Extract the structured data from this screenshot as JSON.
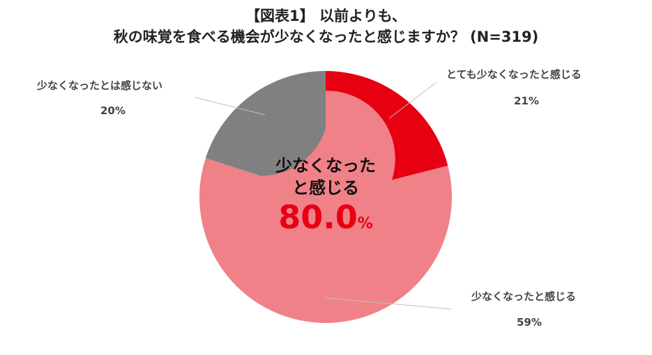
{
  "chart_data": {
    "type": "pie",
    "title_line1": "【図表1】 以前よりも、",
    "title_line2": "秋の味覚を食べる機会が少なくなったと感じますか？ (N=319)",
    "slices": [
      {
        "label": "とても少なくなったと感じる",
        "value": 21,
        "display": "21%",
        "color": "#e60012"
      },
      {
        "label": "少なくなったと感じる",
        "value": 59,
        "display": "59%",
        "color": "#f08189"
      },
      {
        "label": "少なくなったとは感じない",
        "value": 20,
        "display": "20%",
        "color": "#808080"
      }
    ],
    "center_label_line1": "少なくなった",
    "center_label_line2": "と感じる",
    "center_value": "80.0",
    "center_unit": "%"
  }
}
